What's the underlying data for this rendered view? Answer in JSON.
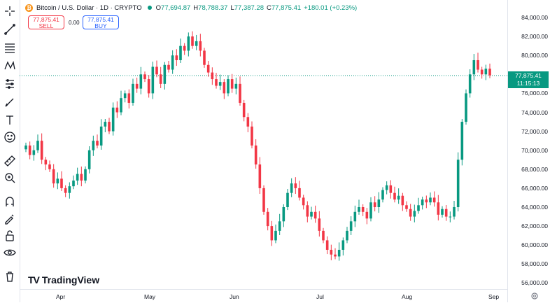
{
  "header": {
    "icon_symbol": "₿",
    "title": "Bitcoin / U.S. Dollar · 1D · CRYPTO",
    "open_label": "O",
    "open": "77,694.87",
    "high_label": "H",
    "high": "78,788.37",
    "low_label": "L",
    "low": "77,387.28",
    "close_label": "C",
    "close": "77,875.41",
    "change": "+180.01 (+0.23%)"
  },
  "trade": {
    "sell_price": "77,875.41",
    "sell_label": "SELL",
    "spread": "0.00",
    "buy_price": "77,875.41",
    "buy_label": "BUY"
  },
  "price_axis": {
    "labels": [
      "84,000.00",
      "82,000.00",
      "80,000.00",
      "78,000.00",
      "76,000.00",
      "74,000.00",
      "72,000.00",
      "70,000.00",
      "68,000.00",
      "66,000.00",
      "64,000.00",
      "62,000.00",
      "60,000.00",
      "58,000.00",
      "56,000.00"
    ],
    "current_price": "77,875.41",
    "countdown": "11:15:13"
  },
  "time_axis": {
    "labels": [
      "Apr",
      "May",
      "Jun",
      "Jul",
      "Aug",
      "Sep"
    ]
  },
  "brand": {
    "logo_text": "TradingView"
  },
  "colors": {
    "up": "#089981",
    "down": "#f23645",
    "accent": "#2962ff"
  },
  "toolbar_icons": [
    "crosshair-icon",
    "trend-line-icon",
    "fib-retracement-icon",
    "pattern-icon",
    "forecast-icon",
    "brush-icon",
    "text-icon",
    "emoji-icon",
    "ruler-icon",
    "zoom-in-icon",
    "magnet-icon",
    "lock-drawing-icon",
    "lock-icon",
    "eye-icon",
    "trash-icon"
  ],
  "chart_data": {
    "type": "candlestick",
    "symbol": "Bitcoin / U.S. Dollar",
    "interval": "1D",
    "ylim": [
      55000,
      85000
    ],
    "x_ticks": [
      "Apr",
      "May",
      "Jun",
      "Jul",
      "Aug",
      "Sep"
    ],
    "approx_closes": [
      70500,
      69500,
      70000,
      71000,
      69000,
      68500,
      68000,
      66500,
      67000,
      66000,
      65500,
      66200,
      66800,
      67500,
      66800,
      68000,
      70000,
      71000,
      70500,
      72500,
      73000,
      72000,
      74500,
      74000,
      75500,
      76000,
      75000,
      77000,
      76500,
      78000,
      77500,
      76000,
      78800,
      78000,
      77000,
      79000,
      78500,
      80000,
      79500,
      81000,
      80500,
      82000,
      81000,
      81500,
      80500,
      79000,
      78200,
      77500,
      76800,
      77200,
      76000,
      77500,
      76500,
      77000,
      75000,
      73500,
      72500,
      70500,
      68500,
      66000,
      63500,
      62000,
      60500,
      61500,
      62500,
      64000,
      65500,
      66500,
      66000,
      65000,
      64200,
      63000,
      63500,
      62800,
      61500,
      60500,
      59500,
      59000,
      58800,
      59500,
      60500,
      61500,
      62500,
      63500,
      64000,
      63500,
      62800,
      64500,
      64000,
      64800,
      65800,
      66300,
      65500,
      64800,
      65200,
      64200,
      63800,
      63000,
      63600,
      64200,
      64800,
      64500,
      65000,
      64500,
      63200,
      63800,
      63000,
      63000,
      64000,
      69000,
      73000,
      76000,
      78000,
      79500,
      78500,
      78000,
      78600,
      77900
    ]
  }
}
